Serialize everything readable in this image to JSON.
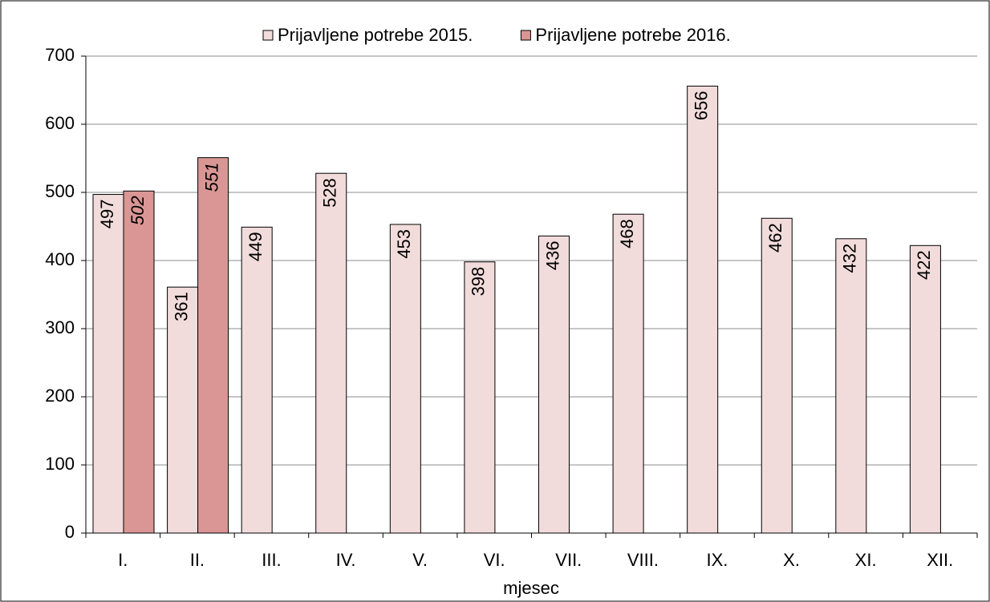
{
  "chart_data": {
    "type": "bar",
    "x_label": "mjesec",
    "categories": [
      "I.",
      "II.",
      "III.",
      "IV.",
      "V.",
      "VI.",
      "VII.",
      "VIII.",
      "IX.",
      "X.",
      "XI.",
      "XII."
    ],
    "series": [
      {
        "name": "Prijavljene potrebe 2015.",
        "color": "#f2dcdb",
        "values": [
          497,
          361,
          449,
          528,
          453,
          398,
          436,
          468,
          656,
          462,
          432,
          422
        ]
      },
      {
        "name": "Prijavljene potrebe 2016.",
        "color": "#d99694",
        "values": [
          502,
          551,
          null,
          null,
          null,
          null,
          null,
          null,
          null,
          null,
          null,
          null
        ]
      }
    ],
    "ylim": [
      0,
      700
    ],
    "yticks": [
      0,
      100,
      200,
      300,
      400,
      500,
      600,
      700
    ],
    "grid": true,
    "legend": "top"
  }
}
